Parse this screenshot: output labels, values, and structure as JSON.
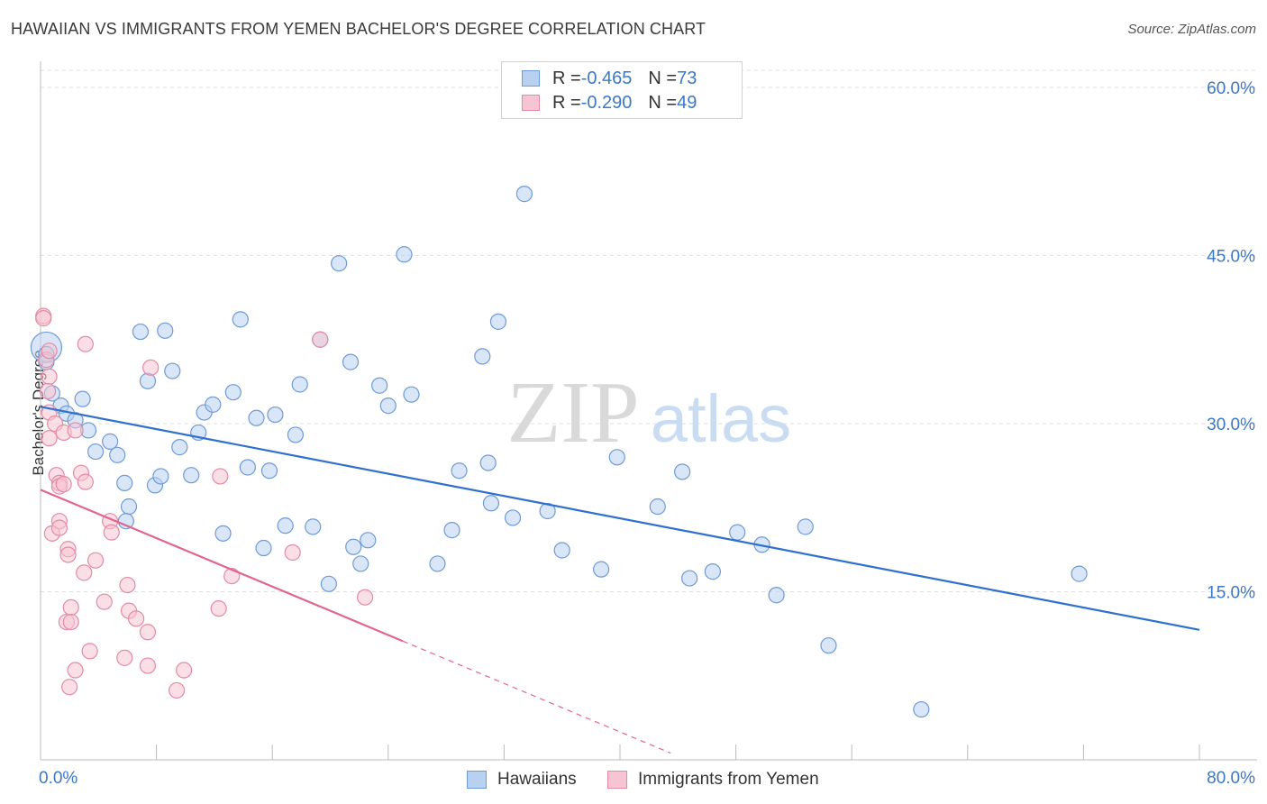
{
  "title": "HAWAIIAN VS IMMIGRANTS FROM YEMEN BACHELOR'S DEGREE CORRELATION CHART",
  "source": "Source: ZipAtlas.com",
  "watermark": {
    "zip": "ZIP",
    "atlas": "atlas"
  },
  "legend": {
    "r_label": "R = ",
    "n_label": "N = ",
    "hawaiians": {
      "r": "-0.465",
      "n": "73"
    },
    "yemen": {
      "r": "-0.290",
      "n": "49"
    }
  },
  "bottom_legend": {
    "hawaiians": "Hawaiians",
    "yemen": "Immigrants from Yemen"
  },
  "colors": {
    "blue_fill": "#b9d1f1",
    "blue_stroke": "#6f9ad6",
    "blue_line": "#2f6fce",
    "pink_fill": "#f6c4d2",
    "pink_stroke": "#e48aa6",
    "pink_line": "#e2658f",
    "axis_text": "#3b78c8",
    "grid": "#dddddd"
  },
  "chart_data": {
    "type": "scatter",
    "title": "HAWAIIAN VS IMMIGRANTS FROM YEMEN BACHELOR'S DEGREE CORRELATION CHART",
    "xlabel": "",
    "ylabel": "Bachelor's Degree",
    "xlim": [
      0,
      80
    ],
    "ylim": [
      0,
      60
    ],
    "x_tick_labels": [
      "0.0%",
      "80.0%"
    ],
    "y_ticks": [
      15,
      30,
      45,
      60
    ],
    "y_tick_labels": [
      "15.0%",
      "30.0%",
      "45.0%",
      "60.0%"
    ],
    "grid": "horizontal dashed",
    "legend_position": "top-center",
    "series": [
      {
        "name": "Hawaiians",
        "color": "#6f9ad6",
        "trend": {
          "x": [
            0,
            80
          ],
          "y": [
            31.5,
            11.6
          ]
        },
        "points": [
          [
            0.4,
            36.8
          ],
          [
            0.4,
            36.2
          ],
          [
            0.4,
            35.5
          ],
          [
            0.8,
            32.7
          ],
          [
            1.4,
            31.6
          ],
          [
            1.8,
            30.9
          ],
          [
            2.4,
            30.3
          ],
          [
            2.9,
            32.2
          ],
          [
            3.3,
            29.4
          ],
          [
            3.8,
            27.5
          ],
          [
            4.8,
            28.4
          ],
          [
            5.3,
            27.2
          ],
          [
            5.8,
            24.7
          ],
          [
            6.1,
            22.6
          ],
          [
            5.9,
            21.3
          ],
          [
            6.9,
            38.2
          ],
          [
            7.4,
            33.8
          ],
          [
            7.9,
            24.5
          ],
          [
            8.3,
            25.3
          ],
          [
            8.6,
            38.3
          ],
          [
            9.1,
            34.7
          ],
          [
            9.6,
            27.9
          ],
          [
            10.4,
            25.4
          ],
          [
            10.9,
            29.2
          ],
          [
            11.3,
            31.0
          ],
          [
            11.9,
            31.7
          ],
          [
            12.6,
            20.2
          ],
          [
            13.3,
            32.8
          ],
          [
            13.8,
            39.3
          ],
          [
            14.3,
            26.1
          ],
          [
            14.9,
            30.5
          ],
          [
            15.4,
            18.9
          ],
          [
            15.8,
            25.8
          ],
          [
            16.2,
            30.8
          ],
          [
            16.9,
            20.9
          ],
          [
            17.6,
            29.0
          ],
          [
            17.9,
            33.5
          ],
          [
            18.8,
            20.8
          ],
          [
            19.3,
            37.5
          ],
          [
            19.9,
            15.7
          ],
          [
            20.6,
            44.3
          ],
          [
            21.4,
            35.5
          ],
          [
            21.6,
            19.0
          ],
          [
            22.1,
            17.5
          ],
          [
            22.6,
            19.6
          ],
          [
            23.4,
            33.4
          ],
          [
            24.0,
            31.6
          ],
          [
            25.1,
            45.1
          ],
          [
            25.6,
            32.6
          ],
          [
            27.4,
            17.5
          ],
          [
            28.4,
            20.5
          ],
          [
            28.9,
            25.8
          ],
          [
            30.5,
            36.0
          ],
          [
            30.9,
            26.5
          ],
          [
            31.1,
            22.9
          ],
          [
            31.6,
            39.1
          ],
          [
            32.6,
            21.6
          ],
          [
            33.4,
            50.5
          ],
          [
            35.0,
            22.2
          ],
          [
            36.0,
            18.7
          ],
          [
            38.7,
            17.0
          ],
          [
            39.8,
            27.0
          ],
          [
            42.6,
            22.6
          ],
          [
            44.3,
            25.7
          ],
          [
            44.8,
            16.2
          ],
          [
            46.4,
            16.8
          ],
          [
            48.1,
            20.3
          ],
          [
            49.8,
            19.2
          ],
          [
            50.8,
            14.7
          ],
          [
            52.8,
            20.8
          ],
          [
            54.4,
            10.2
          ],
          [
            60.8,
            4.5
          ],
          [
            71.7,
            16.6
          ]
        ]
      },
      {
        "name": "Immigrants from Yemen",
        "color": "#e48aa6",
        "trend": {
          "x": [
            0,
            25
          ],
          "y": [
            24.1,
            10.6
          ]
        },
        "trend_extension": {
          "x": [
            25,
            43.5
          ],
          "y": [
            10.6,
            0.6
          ]
        },
        "points": [
          [
            0.2,
            39.6
          ],
          [
            0.2,
            39.4
          ],
          [
            0.4,
            35.7
          ],
          [
            0.6,
            36.5
          ],
          [
            0.6,
            34.2
          ],
          [
            0.5,
            32.9
          ],
          [
            0.6,
            31.0
          ],
          [
            0.6,
            28.7
          ],
          [
            0.8,
            20.2
          ],
          [
            1.0,
            30.0
          ],
          [
            1.1,
            25.4
          ],
          [
            1.3,
            24.7
          ],
          [
            1.3,
            24.4
          ],
          [
            1.3,
            21.3
          ],
          [
            1.3,
            20.7
          ],
          [
            1.6,
            29.2
          ],
          [
            1.6,
            24.6
          ],
          [
            1.8,
            12.3
          ],
          [
            1.9,
            18.8
          ],
          [
            1.9,
            18.3
          ],
          [
            2.0,
            6.5
          ],
          [
            2.1,
            13.6
          ],
          [
            2.1,
            12.3
          ],
          [
            2.4,
            8.0
          ],
          [
            2.4,
            29.4
          ],
          [
            2.8,
            25.6
          ],
          [
            3.0,
            16.7
          ],
          [
            3.1,
            24.8
          ],
          [
            3.1,
            37.1
          ],
          [
            3.4,
            9.7
          ],
          [
            3.8,
            17.8
          ],
          [
            4.4,
            14.1
          ],
          [
            4.8,
            21.3
          ],
          [
            4.9,
            20.3
          ],
          [
            5.8,
            9.1
          ],
          [
            6.0,
            15.6
          ],
          [
            6.1,
            13.3
          ],
          [
            6.6,
            12.6
          ],
          [
            7.4,
            11.4
          ],
          [
            7.4,
            8.4
          ],
          [
            7.6,
            35.0
          ],
          [
            9.4,
            6.2
          ],
          [
            9.9,
            8.0
          ],
          [
            12.3,
            13.5
          ],
          [
            12.4,
            25.3
          ],
          [
            13.2,
            16.4
          ],
          [
            17.4,
            18.5
          ],
          [
            19.3,
            37.5
          ],
          [
            22.4,
            14.5
          ]
        ]
      }
    ]
  }
}
